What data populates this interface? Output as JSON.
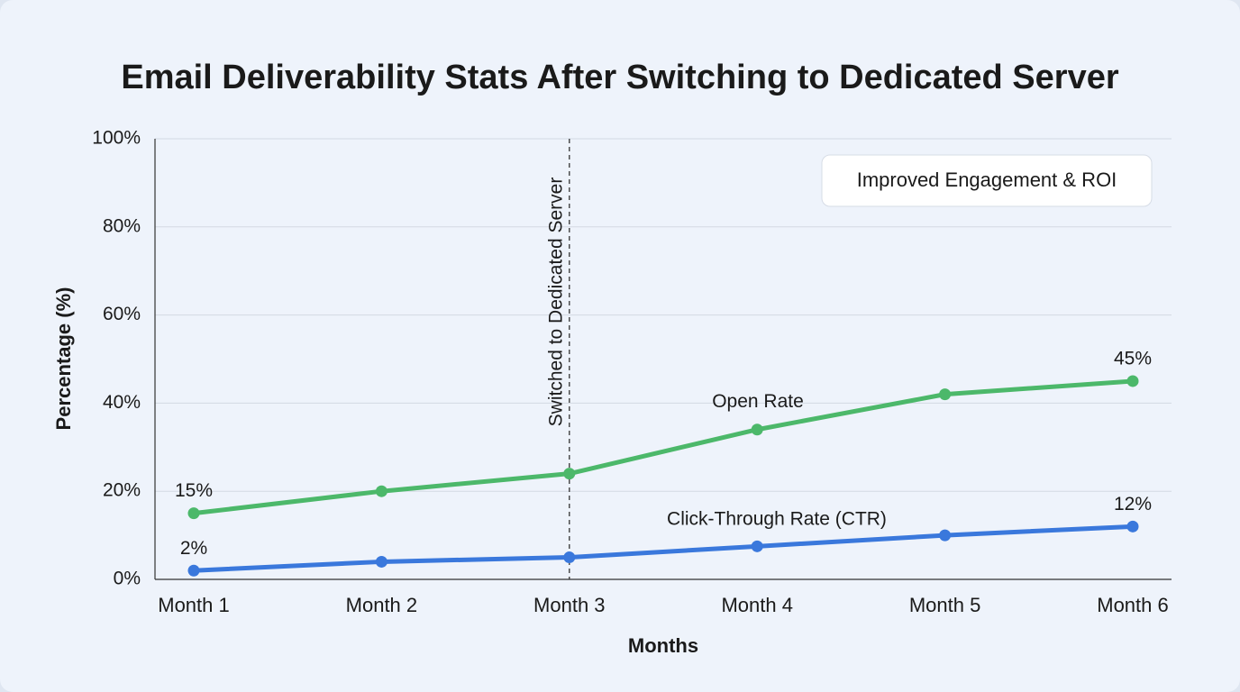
{
  "chart_data": {
    "type": "line",
    "title": "Email Deliverability Stats After Switching to Dedicated Server",
    "x_label": "Months",
    "y_label": "Percentage (%)",
    "categories": [
      "Month 1",
      "Month 2",
      "Month 3",
      "Month 4",
      "Month 5",
      "Month 6"
    ],
    "series": [
      {
        "name": "Open Rate",
        "color": "#4cb86a",
        "values": [
          15,
          20,
          24,
          34,
          42,
          45
        ],
        "value_labels": [
          "15%",
          null,
          null,
          null,
          null,
          "45%"
        ]
      },
      {
        "name": "Click-Through Rate (CTR)",
        "color": "#3a78dc",
        "values": [
          2,
          4,
          5,
          7.5,
          10,
          12
        ],
        "value_labels": [
          "2%",
          null,
          null,
          null,
          null,
          "12%"
        ]
      }
    ],
    "ylim": [
      0,
      100
    ],
    "yticks": [
      {
        "value": 0,
        "label": "0%"
      },
      {
        "value": 20,
        "label": "20%"
      },
      {
        "value": 40,
        "label": "40%"
      },
      {
        "value": 60,
        "label": "60%"
      },
      {
        "value": 80,
        "label": "80%"
      },
      {
        "value": 100,
        "label": "100%"
      }
    ],
    "grid": true,
    "vline": {
      "category": "Month 3",
      "label": "Switched to Dedicated Server"
    },
    "callout": "Improved Engagement & ROI"
  }
}
